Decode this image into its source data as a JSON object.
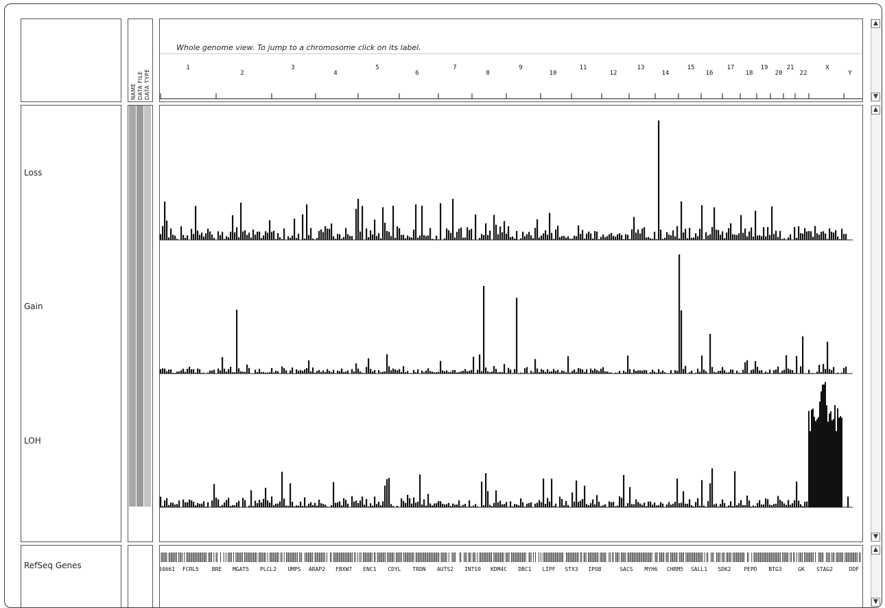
{
  "header": {
    "title": "Whole genome view.  To jump to a chromosome click on its label.",
    "attribute_headers": [
      "NAME",
      "DATA FILE",
      "DATA TYPE"
    ]
  },
  "chromosomes": [
    "1",
    "2",
    "3",
    "4",
    "5",
    "6",
    "7",
    "8",
    "9",
    "10",
    "11",
    "12",
    "13",
    "14",
    "15",
    "16",
    "17",
    "18",
    "19",
    "20",
    "21",
    "22",
    "X",
    "Y"
  ],
  "tracks": [
    {
      "name": "Loss"
    },
    {
      "name": "Gain"
    },
    {
      "name": "LOH"
    }
  ],
  "refseq": {
    "name": "RefSeq Genes",
    "genes": [
      "34661",
      "FCRL5",
      "BRE",
      "MGAT5",
      "PLCL2",
      "UMPS",
      "ARAP2",
      "FBXW7",
      "ENC1",
      "CDYL",
      "TRDN",
      "AUTS2",
      "INTS9",
      "KDM4C",
      "DBC1",
      "LIPF",
      "STX3",
      "IPO8",
      "SACS",
      "MYH6",
      "CHRM5",
      "SALL1",
      "SDK2",
      "PEPD",
      "BTG3",
      "GK",
      "STAG2",
      "DDF"
    ]
  },
  "scroll_arrows": {
    "up": "▲",
    "down": "▼"
  },
  "colors": {
    "bar": "#111111",
    "attribute_gray": "#a8a8a8",
    "attribute_light": "#c8c8c8",
    "border": "#555555"
  }
}
